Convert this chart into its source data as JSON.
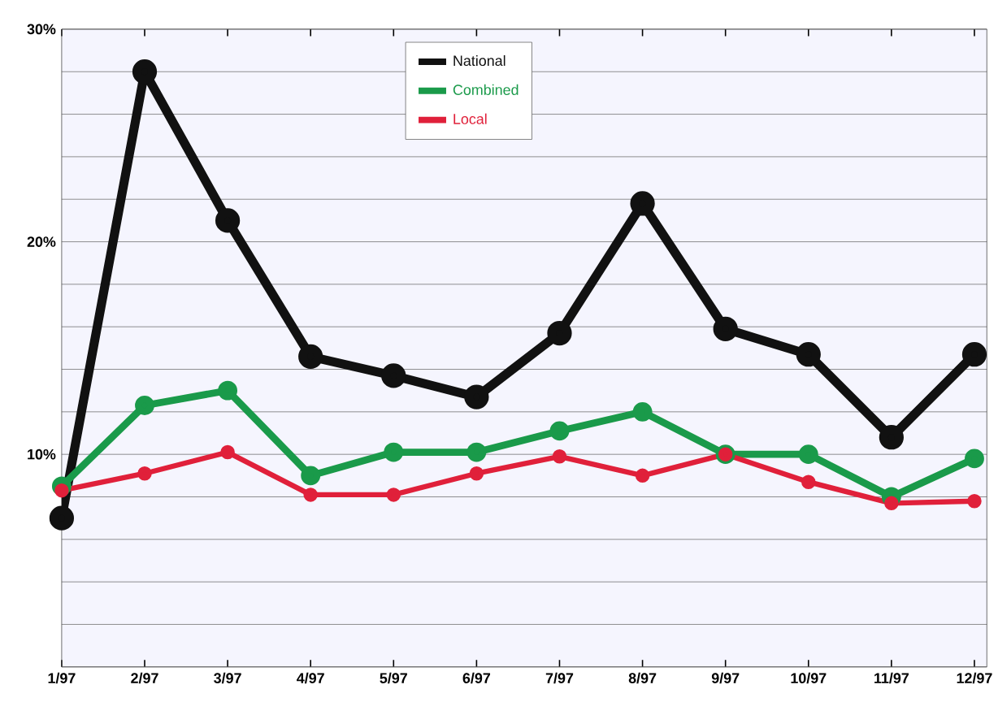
{
  "chart_data": {
    "type": "line",
    "categories": [
      "1/97",
      "2/97",
      "3/97",
      "4/97",
      "5/97",
      "6/97",
      "7/97",
      "8/97",
      "9/97",
      "10/97",
      "11/97",
      "12/97"
    ],
    "series": [
      {
        "name": "National",
        "color": "#111111",
        "values": [
          7,
          28,
          21,
          14.6,
          13.7,
          12.7,
          15.7,
          21.8,
          15.9,
          14.7,
          10.8,
          14.7
        ]
      },
      {
        "name": "Combined",
        "color": "#1a9a4a",
        "values": [
          8.5,
          12.3,
          13,
          9,
          10.1,
          10.1,
          11.1,
          12,
          10,
          10,
          8,
          9.8
        ]
      },
      {
        "name": "Local",
        "color": "#e0203a",
        "values": [
          8.3,
          9.1,
          10.1,
          8.1,
          8.1,
          9.1,
          9.9,
          9,
          10,
          8.7,
          7.7,
          7.8
        ]
      }
    ],
    "ylim": [
      0,
      30
    ],
    "yticks": [
      {
        "value": 0,
        "label": null
      },
      {
        "value": 2,
        "label": null
      },
      {
        "value": 4,
        "label": null
      },
      {
        "value": 6,
        "label": null
      },
      {
        "value": 8,
        "label": null
      },
      {
        "value": 10,
        "label": "10%"
      },
      {
        "value": 12,
        "label": null
      },
      {
        "value": 14,
        "label": null
      },
      {
        "value": 16,
        "label": null
      },
      {
        "value": 18,
        "label": null
      },
      {
        "value": 20,
        "label": "20%"
      },
      {
        "value": 22,
        "label": null
      },
      {
        "value": 24,
        "label": null
      },
      {
        "value": 26,
        "label": null
      },
      {
        "value": 28,
        "label": null
      },
      {
        "value": 30,
        "label": "30%"
      }
    ],
    "grid": "y",
    "legend": "top",
    "marker": "circle",
    "line_style": "solid"
  }
}
